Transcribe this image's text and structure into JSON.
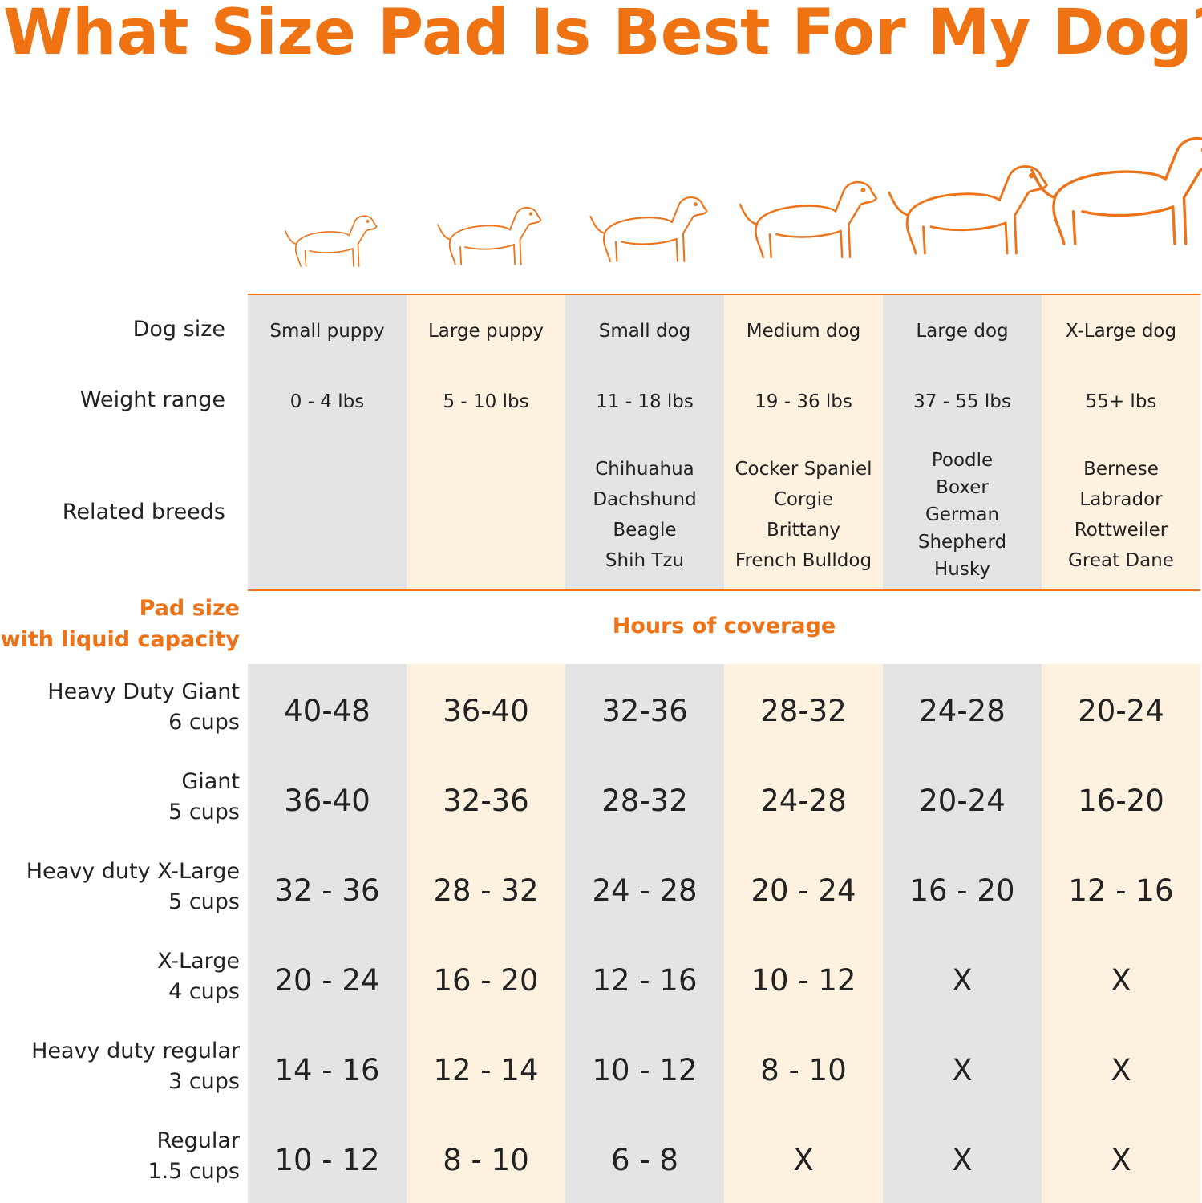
{
  "title": "What Size Pad Is Best For My Dog?",
  "row_labels": {
    "dog_size": "Dog size",
    "weight_range": "Weight range",
    "related_breeds": "Related breeds"
  },
  "pad_header": {
    "line1": "Pad size",
    "line2": "with liquid capacity"
  },
  "coverage_header": "Hours of coverage",
  "columns": [
    {
      "size": "Small puppy",
      "weight": "0 - 4 lbs",
      "breeds": []
    },
    {
      "size": "Large puppy",
      "weight": "5 - 10 lbs",
      "breeds": []
    },
    {
      "size": "Small dog",
      "weight": "11 - 18 lbs",
      "breeds": [
        "Chihuahua",
        "Dachshund",
        "Beagle",
        "Shih Tzu"
      ]
    },
    {
      "size": "Medium dog",
      "weight": "19 - 36 lbs",
      "breeds": [
        "Cocker Spaniel",
        "Corgie",
        "Brittany",
        "French Bulldog"
      ]
    },
    {
      "size": "Large dog",
      "weight": "37 - 55 lbs",
      "breeds": [
        "Poodle",
        "Boxer",
        "German",
        "Shepherd",
        "Husky"
      ]
    },
    {
      "size": "X-Large dog",
      "weight": "55+ lbs",
      "breeds": [
        "Bernese",
        "Labrador",
        "Rottweiler",
        "Great Dane"
      ]
    }
  ],
  "pads": [
    {
      "name": "Heavy Duty Giant",
      "capacity": "6 cups",
      "values": [
        "40-48",
        "36-40",
        "32-36",
        "28-32",
        "24-28",
        "20-24"
      ]
    },
    {
      "name": "Giant",
      "capacity": "5 cups",
      "values": [
        "36-40",
        "32-36",
        "28-32",
        "24-28",
        "20-24",
        "16-20"
      ]
    },
    {
      "name": "Heavy duty X-Large",
      "capacity": "5 cups",
      "values": [
        "32 - 36",
        "28 - 32",
        "24 - 28",
        "20 - 24",
        "16 - 20",
        "12 - 16"
      ]
    },
    {
      "name": "X-Large",
      "capacity": "4 cups",
      "values": [
        "20 - 24",
        "16 - 20",
        "12 - 16",
        "10 - 12",
        "X",
        "X"
      ]
    },
    {
      "name": "Heavy duty regular",
      "capacity": "3 cups",
      "values": [
        "14 - 16",
        "12 - 14",
        "10 - 12",
        "8 - 10",
        "X",
        "X"
      ]
    },
    {
      "name": "Regular",
      "capacity": "1.5 cups",
      "values": [
        "10 - 12",
        "8 - 10",
        "6 - 8",
        "X",
        "X",
        "X"
      ]
    }
  ]
}
